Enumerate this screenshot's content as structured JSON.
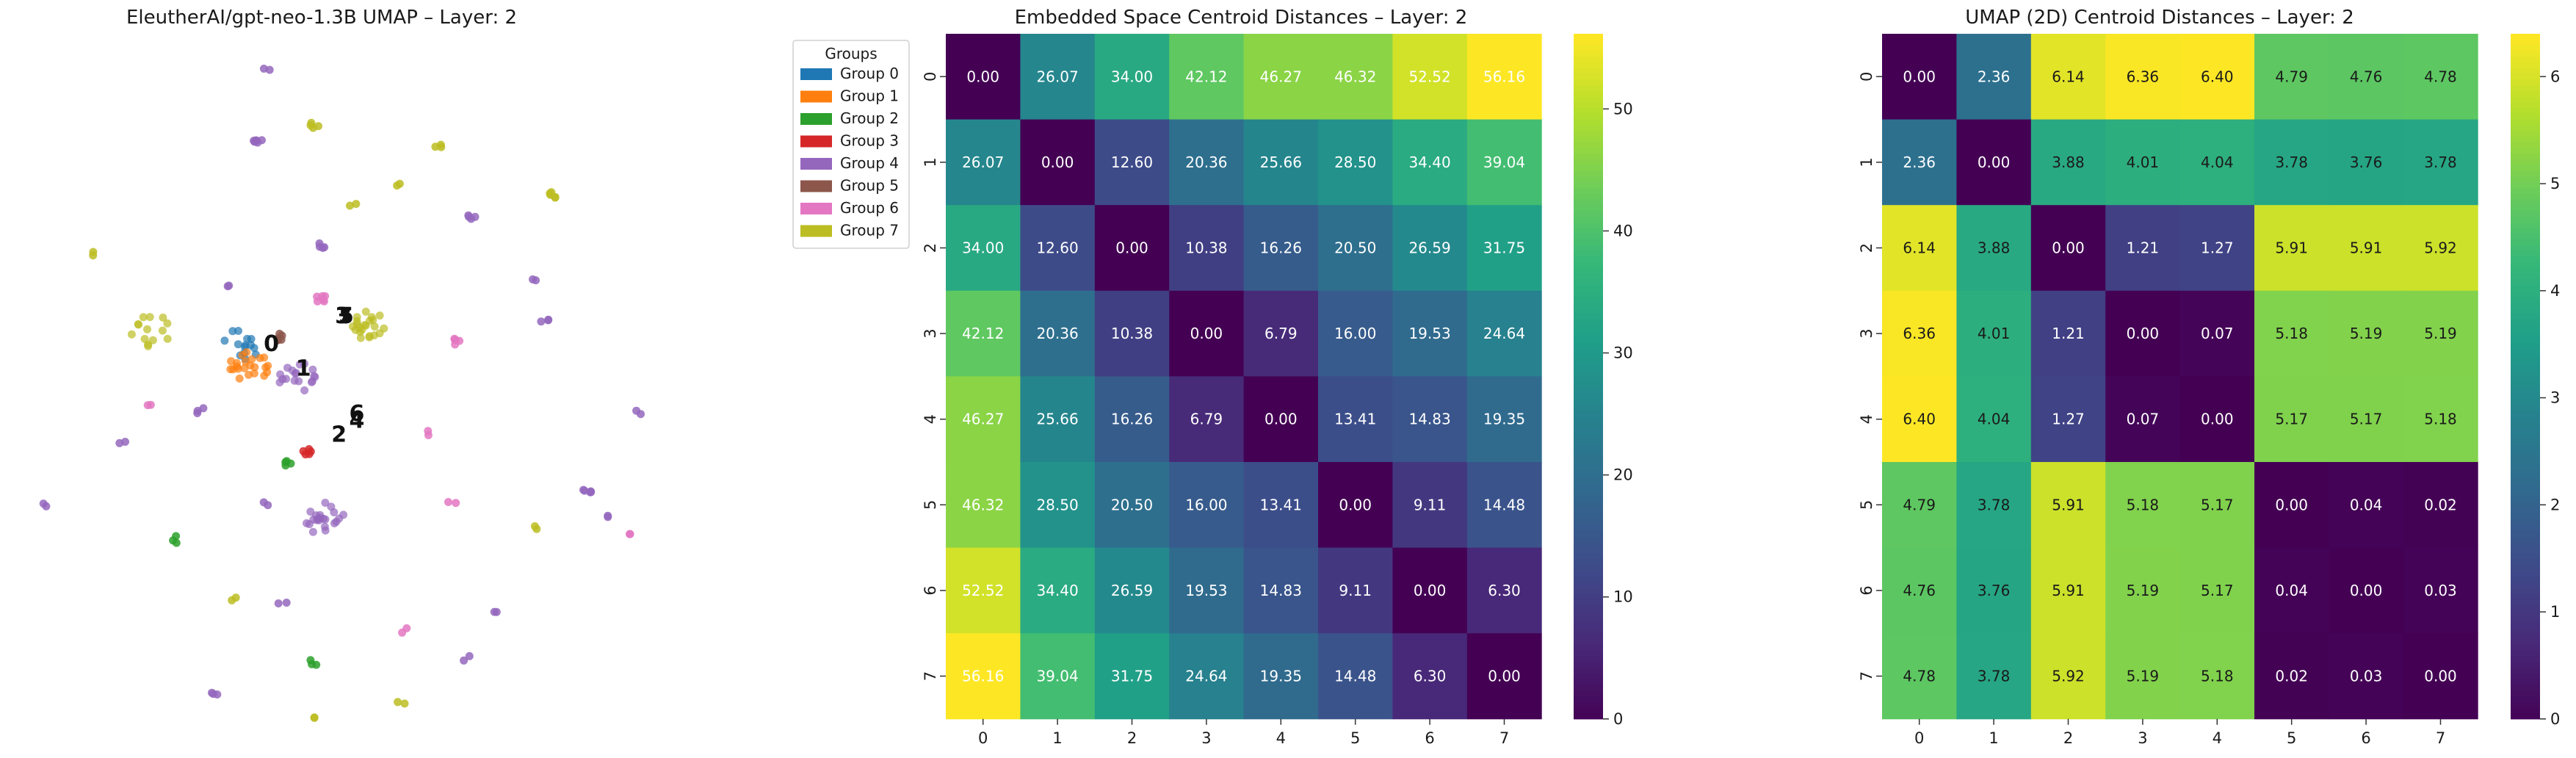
{
  "chart_data": [
    {
      "type": "scatter",
      "title": "EleutherAI/gpt-neo-1.3B UMAP – Layer: 2",
      "legend": {
        "title": "Groups",
        "placement": "right",
        "entries": [
          "Group 0",
          "Group 1",
          "Group 2",
          "Group 3",
          "Group 4",
          "Group 5",
          "Group 6",
          "Group 7"
        ]
      },
      "colors": [
        "#1f77b4",
        "#ff7f0e",
        "#2ca02c",
        "#d62728",
        "#9467bd",
        "#8c564b",
        "#e377c2",
        "#bcbd22"
      ],
      "xlim": [
        0,
        100
      ],
      "ylim": [
        0,
        100
      ],
      "axes_visible": false,
      "clusters": [
        {
          "group": 4,
          "x": 34.5,
          "y": 96.5,
          "n": 2
        },
        {
          "group": 7,
          "x": 41.0,
          "y": 88.5,
          "n": 4
        },
        {
          "group": 4,
          "x": 33.0,
          "y": 86.0,
          "n": 6
        },
        {
          "group": 7,
          "x": 58.5,
          "y": 85.5,
          "n": 3
        },
        {
          "group": 7,
          "x": 74.5,
          "y": 78.5,
          "n": 5
        },
        {
          "group": 4,
          "x": 63.0,
          "y": 75.5,
          "n": 4
        },
        {
          "group": 7,
          "x": 53.0,
          "y": 79.5,
          "n": 2
        },
        {
          "group": 4,
          "x": 42.0,
          "y": 71.0,
          "n": 4
        },
        {
          "group": 7,
          "x": 46.5,
          "y": 77.0,
          "n": 2
        },
        {
          "group": 4,
          "x": 29.5,
          "y": 65.5,
          "n": 2
        },
        {
          "group": 7,
          "x": 10.0,
          "y": 70.0,
          "n": 2
        },
        {
          "group": 7,
          "x": 18.0,
          "y": 59.0,
          "n": 14
        },
        {
          "group": 0,
          "x": 31.0,
          "y": 57.0,
          "n": 14
        },
        {
          "group": 1,
          "x": 32.0,
          "y": 54.0,
          "n": 22
        },
        {
          "group": 4,
          "x": 39.0,
          "y": 52.0,
          "n": 18
        },
        {
          "group": 7,
          "x": 48.5,
          "y": 60.0,
          "n": 22
        },
        {
          "group": 6,
          "x": 42.0,
          "y": 63.5,
          "n": 6
        },
        {
          "group": 5,
          "x": 36.0,
          "y": 58.0,
          "n": 6
        },
        {
          "group": 3,
          "x": 40.0,
          "y": 41.5,
          "n": 5
        },
        {
          "group": 2,
          "x": 37.5,
          "y": 40.0,
          "n": 4
        },
        {
          "group": 4,
          "x": 42.5,
          "y": 32.0,
          "n": 22
        },
        {
          "group": 4,
          "x": 73.5,
          "y": 60.0,
          "n": 3
        },
        {
          "group": 6,
          "x": 61.0,
          "y": 57.5,
          "n": 5
        },
        {
          "group": 4,
          "x": 86.5,
          "y": 47.0,
          "n": 2
        },
        {
          "group": 4,
          "x": 79.5,
          "y": 36.0,
          "n": 5
        },
        {
          "group": 4,
          "x": 82.0,
          "y": 32.5,
          "n": 2
        },
        {
          "group": 6,
          "x": 85.0,
          "y": 30.0,
          "n": 2
        },
        {
          "group": 7,
          "x": 72.5,
          "y": 31.0,
          "n": 2
        },
        {
          "group": 4,
          "x": 25.0,
          "y": 47.5,
          "n": 3
        },
        {
          "group": 6,
          "x": 18.0,
          "y": 48.0,
          "n": 2
        },
        {
          "group": 6,
          "x": 60.5,
          "y": 34.5,
          "n": 2
        },
        {
          "group": 2,
          "x": 21.5,
          "y": 29.0,
          "n": 3
        },
        {
          "group": 4,
          "x": 3.0,
          "y": 34.0,
          "n": 2
        },
        {
          "group": 4,
          "x": 14.0,
          "y": 43.0,
          "n": 2
        },
        {
          "group": 4,
          "x": 34.0,
          "y": 34.0,
          "n": 2
        },
        {
          "group": 4,
          "x": 36.5,
          "y": 20.0,
          "n": 2
        },
        {
          "group": 7,
          "x": 30.0,
          "y": 20.5,
          "n": 2
        },
        {
          "group": 4,
          "x": 66.0,
          "y": 18.5,
          "n": 2
        },
        {
          "group": 6,
          "x": 53.5,
          "y": 16.0,
          "n": 2
        },
        {
          "group": 4,
          "x": 62.5,
          "y": 12.0,
          "n": 2
        },
        {
          "group": 2,
          "x": 41.0,
          "y": 11.5,
          "n": 3
        },
        {
          "group": 4,
          "x": 27.0,
          "y": 7.0,
          "n": 3
        },
        {
          "group": 7,
          "x": 53.0,
          "y": 5.5,
          "n": 2
        },
        {
          "group": 7,
          "x": 41.0,
          "y": 4.0,
          "n": 2
        },
        {
          "group": 4,
          "x": 72.0,
          "y": 66.0,
          "n": 2
        },
        {
          "group": 6,
          "x": 57.0,
          "y": 44.0,
          "n": 2
        }
      ],
      "centroid_labels": [
        {
          "label": "0",
          "x": 35.0,
          "y": 56.0
        },
        {
          "label": "1",
          "x": 39.5,
          "y": 52.5
        },
        {
          "label": "2",
          "x": 44.5,
          "y": 43.0
        },
        {
          "label": "3",
          "x": 45.0,
          "y": 60.0
        },
        {
          "label": "4",
          "x": 47.0,
          "y": 45.0
        },
        {
          "label": "5",
          "x": 45.5,
          "y": 60.0
        },
        {
          "label": "6",
          "x": 47.0,
          "y": 46.0
        },
        {
          "label": "7",
          "x": 45.3,
          "y": 60.0
        }
      ]
    },
    {
      "type": "heatmap",
      "title": "Embedded Space Centroid Distances – Layer: 2",
      "x_categories": [
        "0",
        "1",
        "2",
        "3",
        "4",
        "5",
        "6",
        "7"
      ],
      "y_categories": [
        "0",
        "1",
        "2",
        "3",
        "4",
        "5",
        "6",
        "7"
      ],
      "colormap": "viridis",
      "vmin": 0,
      "vmax": 56.16,
      "colorbar_ticks": [
        "0",
        "10",
        "20",
        "30",
        "40",
        "50"
      ],
      "values": [
        [
          0.0,
          26.07,
          34.0,
          42.12,
          46.27,
          46.32,
          52.52,
          56.16
        ],
        [
          26.07,
          0.0,
          12.6,
          20.36,
          25.66,
          28.5,
          34.4,
          39.04
        ],
        [
          34.0,
          12.6,
          0.0,
          10.38,
          16.26,
          20.5,
          26.59,
          31.75
        ],
        [
          42.12,
          20.36,
          10.38,
          0.0,
          6.79,
          16.0,
          19.53,
          24.64
        ],
        [
          46.27,
          25.66,
          16.26,
          6.79,
          0.0,
          13.41,
          14.83,
          19.35
        ],
        [
          46.32,
          28.5,
          20.5,
          16.0,
          13.41,
          0.0,
          9.11,
          14.48
        ],
        [
          52.52,
          34.4,
          26.59,
          19.53,
          14.83,
          9.11,
          0.0,
          6.3
        ],
        [
          56.16,
          39.04,
          31.75,
          24.64,
          19.35,
          14.48,
          6.3,
          0.0
        ]
      ]
    },
    {
      "type": "heatmap",
      "title": "UMAP (2D) Centroid Distances – Layer: 2",
      "x_categories": [
        "0",
        "1",
        "2",
        "3",
        "4",
        "5",
        "6",
        "7"
      ],
      "y_categories": [
        "0",
        "1",
        "2",
        "3",
        "4",
        "5",
        "6",
        "7"
      ],
      "colormap": "viridis",
      "vmin": 0,
      "vmax": 6.4,
      "colorbar_ticks": [
        "0",
        "1",
        "2",
        "3",
        "4",
        "5",
        "6"
      ],
      "values": [
        [
          0.0,
          2.36,
          6.14,
          6.36,
          6.4,
          4.79,
          4.76,
          4.78
        ],
        [
          2.36,
          0.0,
          3.88,
          4.01,
          4.04,
          3.78,
          3.76,
          3.78
        ],
        [
          6.14,
          3.88,
          0.0,
          1.21,
          1.27,
          5.91,
          5.91,
          5.92
        ],
        [
          6.36,
          4.01,
          1.21,
          0.0,
          0.07,
          5.18,
          5.19,
          5.19
        ],
        [
          6.4,
          4.04,
          1.27,
          0.07,
          0.0,
          5.17,
          5.17,
          5.18
        ],
        [
          4.79,
          3.78,
          5.91,
          5.18,
          5.17,
          0.0,
          0.04,
          0.02
        ],
        [
          4.76,
          3.76,
          5.91,
          5.19,
          5.17,
          0.04,
          0.0,
          0.03
        ],
        [
          4.78,
          3.78,
          5.92,
          5.19,
          5.18,
          0.02,
          0.03,
          0.0
        ]
      ]
    }
  ]
}
